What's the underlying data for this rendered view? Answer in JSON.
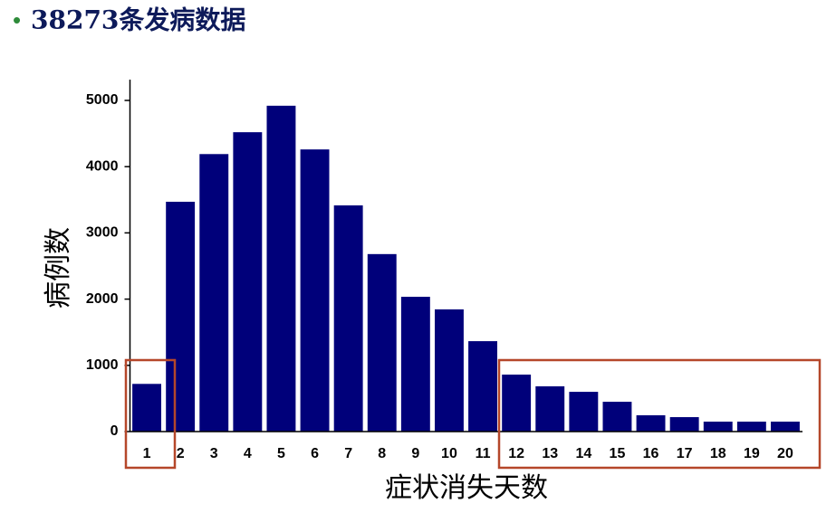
{
  "chart_data": {
    "type": "bar",
    "title": "38273条发病数据",
    "xlabel": "症状消失天数",
    "ylabel": "病例数",
    "categories": [
      "1",
      "2",
      "3",
      "4",
      "5",
      "6",
      "7",
      "8",
      "9",
      "10",
      "11",
      "12",
      "13",
      "14",
      "15",
      "16",
      "17",
      "18",
      "19",
      "20"
    ],
    "values": [
      720,
      3470,
      4190,
      4520,
      4920,
      4260,
      3415,
      2680,
      2035,
      1845,
      1365,
      860,
      683,
      600,
      450,
      246,
      218,
      150,
      150,
      150
    ],
    "color": "#00007a",
    "ylim": [
      0,
      5000
    ],
    "yticks": [
      0,
      1000,
      2000,
      3000,
      4000,
      5000
    ],
    "grid": false
  }
}
